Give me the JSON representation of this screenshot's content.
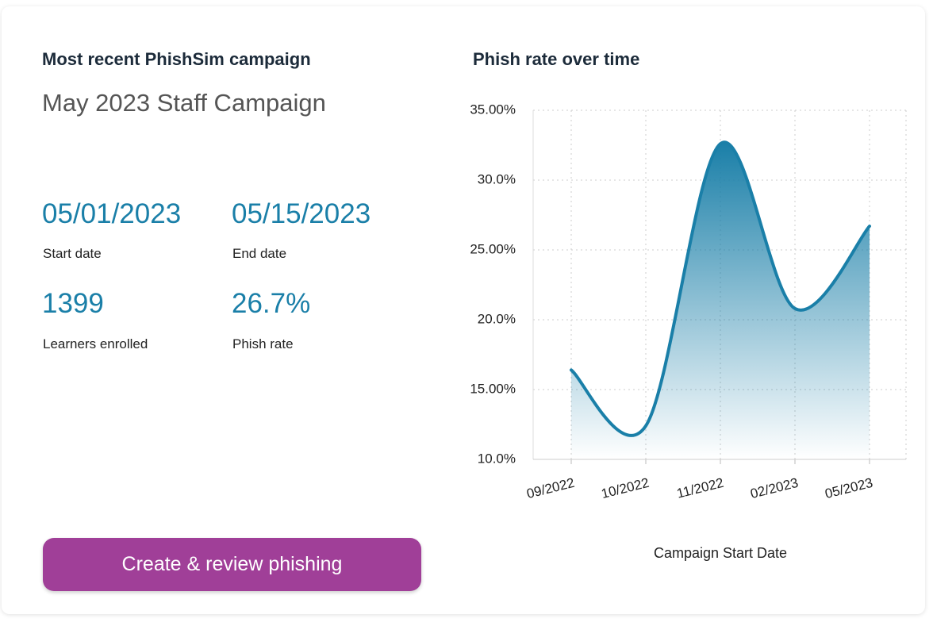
{
  "panel": {
    "heading": "Most recent PhishSim campaign",
    "campaign_name": "May 2023 Staff Campaign",
    "stats": [
      {
        "value": "05/01/2023",
        "label": "Start date"
      },
      {
        "value": "05/15/2023",
        "label": "End date"
      },
      {
        "value": "1399",
        "label": "Learners enrolled"
      },
      {
        "value": "26.7%",
        "label": "Phish rate"
      }
    ],
    "button": "Create & review phishing"
  },
  "chart_data": {
    "type": "line",
    "title": "Phish rate over time",
    "x_label": "Campaign Start Date",
    "categories": [
      "09/2022",
      "10/2022",
      "11/2022",
      "02/2023",
      "05/2023"
    ],
    "values": [
      16.4,
      12.4,
      32.6,
      20.8,
      26.7
    ],
    "color": "#1a7fa8",
    "ylim": [
      10,
      35
    ],
    "yticks": [
      {
        "value": 10,
        "label": "10.0%"
      },
      {
        "value": 15,
        "label": "15.00%"
      },
      {
        "value": 20,
        "label": "20.0%"
      },
      {
        "value": 25,
        "label": "25.00%"
      },
      {
        "value": 30,
        "label": "30.0%"
      },
      {
        "value": 35,
        "label": "35.00%"
      }
    ],
    "grid": true
  }
}
